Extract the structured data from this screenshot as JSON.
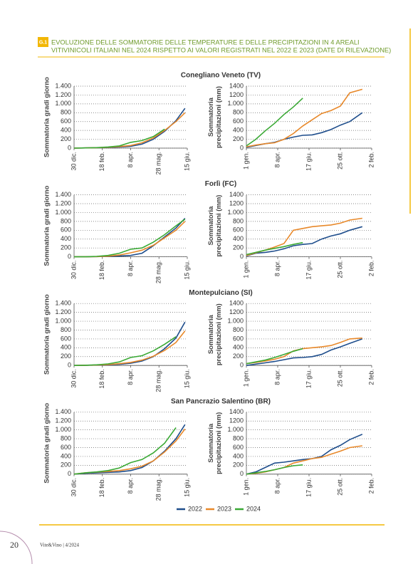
{
  "header": {
    "badge": "G.1",
    "title": [
      "EVOLUZIONE DELLE SOMMATORIE DELLE TEMPERATURE E DELLE PRECIPITAZIONI IN 4 AREALI",
      "VITIVINICOLI ITALIANI NEL 2024 RISPETTO AI VALORI REGISTRATI NEL 2022 E 2023 (DATE DI RILEVAZIONE)"
    ]
  },
  "chart_data": [
    {
      "type": "line",
      "title": "Conegliano Veneto (TV)",
      "ylabel": [
        "Sommatoria gradi giorno"
      ],
      "x": [
        0,
        20,
        40,
        60,
        80,
        100,
        120,
        140,
        160,
        180,
        196
      ],
      "xlim": [
        0,
        200
      ],
      "xticks": [
        {
          "value": 0,
          "label": "30 dic."
        },
        {
          "value": 50,
          "label": "18 feb."
        },
        {
          "value": 100,
          "label": "8 apr."
        },
        {
          "value": 150,
          "label": "28 mag."
        },
        {
          "value": 200,
          "label": "15 giu."
        }
      ],
      "ylim": [
        0,
        1400
      ],
      "yticks": [
        0,
        200,
        400,
        600,
        800,
        {
          "value": 1000,
          "label": "1.000"
        },
        {
          "value": 1200,
          "label": "1.200"
        },
        {
          "value": 1400,
          "label": "1.400"
        }
      ],
      "grid": true,
      "series": [
        {
          "name": "2022",
          "color": "#1f4e8c",
          "values": [
            0,
            5,
            10,
            15,
            25,
            40,
            90,
            200,
            380,
            620,
            900
          ]
        },
        {
          "name": "2023",
          "color": "#e8892b",
          "values": [
            0,
            5,
            10,
            20,
            35,
            60,
            120,
            230,
            400,
            600,
            800
          ]
        },
        {
          "name": "2024",
          "color": "#3aa935",
          "values": [
            0,
            5,
            12,
            25,
            50,
            130,
            170,
            260,
            430,
            null,
            null
          ]
        }
      ]
    },
    {
      "type": "line",
      "ylabel": [
        "Sommatoria",
        "precipitazioni (mm)"
      ],
      "x": [
        0,
        30,
        60,
        90,
        120,
        150,
        180,
        210,
        240,
        270,
        300,
        330,
        370
      ],
      "xlim": [
        0,
        400
      ],
      "xticks": [
        {
          "value": 0,
          "label": "1 gen."
        },
        {
          "value": 100,
          "label": "8 apr."
        },
        {
          "value": 200,
          "label": "17 giu."
        },
        {
          "value": 300,
          "label": "25 ott."
        },
        {
          "value": 400,
          "label": "2 feb."
        }
      ],
      "ylim": [
        0,
        1400
      ],
      "yticks": [
        0,
        200,
        400,
        600,
        800,
        {
          "value": 1000,
          "label": "1.000"
        },
        1200,
        1400
      ],
      "grid": true,
      "series": [
        {
          "color": "#1f4e8c",
          "values": [
            20,
            60,
            100,
            130,
            200,
            250,
            290,
            300,
            350,
            420,
            520,
            600,
            800
          ]
        },
        {
          "color": "#e8892b",
          "values": [
            30,
            70,
            100,
            120,
            200,
            330,
            500,
            640,
            780,
            850,
            950,
            1250,
            1330
          ]
        },
        {
          "color": "#3aa935",
          "values": [
            50,
            200,
            390,
            560,
            760,
            930,
            1130,
            null,
            null,
            null,
            null,
            null,
            null
          ]
        }
      ]
    },
    {
      "type": "line",
      "title": "Forlì (FC)",
      "ylabel": [
        "Sommatoria gradi giorno"
      ],
      "x": [
        0,
        20,
        40,
        60,
        80,
        100,
        120,
        140,
        160,
        180,
        196
      ],
      "xlim": [
        0,
        200
      ],
      "xticks": [
        {
          "value": 0,
          "label": "30 dic."
        },
        {
          "value": 50,
          "label": "18 feb."
        },
        {
          "value": 100,
          "label": "8 apr."
        },
        {
          "value": 150,
          "label": "28 mag."
        },
        {
          "value": 200,
          "label": "15 giu."
        }
      ],
      "ylim": [
        0,
        1400
      ],
      "yticks": [
        0,
        200,
        400,
        600,
        800,
        {
          "value": 1000,
          "label": "1.000"
        },
        {
          "value": 1200,
          "label": "1.200"
        },
        {
          "value": 1400,
          "label": "1.400"
        }
      ],
      "grid": true,
      "series": [
        {
          "color": "#1f4e8c",
          "values": [
            0,
            0,
            5,
            10,
            20,
            30,
            80,
            250,
            450,
            650,
            870
          ]
        },
        {
          "color": "#e8892b",
          "values": [
            0,
            0,
            5,
            15,
            40,
            90,
            150,
            260,
            430,
            600,
            800
          ]
        },
        {
          "color": "#3aa935",
          "values": [
            0,
            0,
            10,
            30,
            80,
            170,
            200,
            330,
            500,
            700,
            850
          ]
        }
      ]
    },
    {
      "type": "line",
      "ylabel": [
        "Sommatoria",
        "precipitazioni (mm)"
      ],
      "x": [
        0,
        30,
        60,
        90,
        120,
        150,
        180,
        210,
        240,
        270,
        300,
        330,
        370
      ],
      "xlim": [
        0,
        400
      ],
      "xticks": [
        {
          "value": 0,
          "label": "1 gen."
        },
        {
          "value": 100,
          "label": "8 apr."
        },
        {
          "value": 200,
          "label": "17 giu."
        },
        {
          "value": 300,
          "label": "25 ott."
        },
        {
          "value": 400,
          "label": "2 feb."
        }
      ],
      "ylim": [
        0,
        1400
      ],
      "yticks": [
        0,
        200,
        400,
        600,
        800,
        {
          "value": 1000,
          "label": "1.000"
        },
        1200,
        1400
      ],
      "grid": true,
      "series": [
        {
          "color": "#1f4e8c",
          "values": [
            20,
            80,
            100,
            130,
            180,
            250,
            280,
            300,
            400,
            470,
            520,
            600,
            680
          ]
        },
        {
          "color": "#e8892b",
          "values": [
            30,
            90,
            150,
            220,
            300,
            600,
            640,
            680,
            700,
            720,
            760,
            830,
            870
          ]
        },
        {
          "color": "#3aa935",
          "values": [
            50,
            100,
            150,
            190,
            230,
            280,
            320,
            null,
            null,
            null,
            null,
            null,
            null
          ]
        }
      ]
    },
    {
      "type": "line",
      "title": "Montepulciano (SI)",
      "ylabel": [
        "Sommatoria gradi giorno"
      ],
      "x": [
        0,
        20,
        40,
        60,
        80,
        100,
        120,
        140,
        160,
        180,
        196
      ],
      "xlim": [
        0,
        200
      ],
      "xticks": [
        {
          "value": 0,
          "label": "30 dic."
        },
        {
          "value": 50,
          "label": "18 feb."
        },
        {
          "value": 100,
          "label": "8 apr."
        },
        {
          "value": 150,
          "label": "28 mag."
        },
        {
          "value": 200,
          "label": "15 giu."
        }
      ],
      "ylim": [
        0,
        1400
      ],
      "yticks": [
        0,
        200,
        400,
        600,
        800,
        {
          "value": 1000,
          "label": "1.000"
        },
        {
          "value": 1200,
          "label": "1.200"
        },
        {
          "value": 1400,
          "label": "1.400"
        }
      ],
      "grid": true,
      "series": [
        {
          "color": "#1f4e8c",
          "values": [
            0,
            5,
            10,
            15,
            25,
            50,
            100,
            200,
            380,
            620,
            980
          ]
        },
        {
          "color": "#e8892b",
          "values": [
            0,
            5,
            10,
            20,
            40,
            70,
            120,
            210,
            340,
            520,
            780
          ]
        },
        {
          "color": "#3aa935",
          "values": [
            0,
            5,
            15,
            35,
            80,
            180,
            220,
            330,
            480,
            650,
            null
          ]
        }
      ]
    },
    {
      "type": "line",
      "ylabel": [
        "Sommatoria",
        "precipitazioni (mm)"
      ],
      "x": [
        0,
        30,
        60,
        90,
        120,
        150,
        180,
        210,
        240,
        270,
        300,
        330,
        370
      ],
      "xlim": [
        0,
        400
      ],
      "xticks": [
        {
          "value": 0,
          "label": "1 gen."
        },
        {
          "value": 100,
          "label": "8 apr."
        },
        {
          "value": 200,
          "label": "17 giu."
        },
        {
          "value": 300,
          "label": "25 ott."
        },
        {
          "value": 400,
          "label": "2 feb."
        }
      ],
      "ylim": [
        0,
        1400
      ],
      "yticks": [
        0,
        200,
        400,
        600,
        800,
        {
          "value": 1000,
          "label": "1.000"
        },
        1200,
        1400
      ],
      "grid": true,
      "series": [
        {
          "color": "#1f4e8c",
          "values": [
            0,
            30,
            60,
            90,
            130,
            170,
            180,
            200,
            250,
            350,
            420,
            500,
            600
          ]
        },
        {
          "color": "#e8892b",
          "values": [
            40,
            70,
            100,
            140,
            200,
            330,
            380,
            400,
            420,
            450,
            520,
            600,
            620
          ]
        },
        {
          "color": "#3aa935",
          "values": [
            40,
            80,
            120,
            180,
            250,
            320,
            380,
            null,
            null,
            null,
            null,
            null,
            null
          ]
        }
      ]
    },
    {
      "type": "line",
      "title": "San Pancrazio Salentino (BR)",
      "ylabel": [
        "Sommatoria gradi giorno"
      ],
      "x": [
        0,
        20,
        40,
        60,
        80,
        100,
        120,
        140,
        160,
        180,
        196
      ],
      "xlim": [
        0,
        200
      ],
      "xticks": [
        {
          "value": 0,
          "label": "30 dic."
        },
        {
          "value": 50,
          "label": "18 feb."
        },
        {
          "value": 100,
          "label": "8 apr."
        },
        {
          "value": 150,
          "label": "28 mag."
        },
        {
          "value": 200,
          "label": "15 giu."
        }
      ],
      "ylim": [
        0,
        1400
      ],
      "yticks": [
        0,
        200,
        400,
        600,
        800,
        {
          "value": 1000,
          "label": "1.000"
        },
        {
          "value": 1200,
          "label": "1.200"
        },
        {
          "value": 1400,
          "label": "1.400"
        }
      ],
      "grid": true,
      "series": [
        {
          "color": "#1f4e8c",
          "values": [
            0,
            20,
            30,
            40,
            50,
            80,
            150,
            300,
            520,
            800,
            1120
          ]
        },
        {
          "color": "#e8892b",
          "values": [
            0,
            30,
            45,
            60,
            80,
            120,
            180,
            300,
            500,
            750,
            1020
          ]
        },
        {
          "color": "#3aa935",
          "values": [
            0,
            30,
            50,
            80,
            140,
            260,
            330,
            480,
            700,
            1050,
            null
          ]
        }
      ]
    },
    {
      "type": "line",
      "ylabel": [
        "Sommatoria",
        "precipitazioni (mm)"
      ],
      "x": [
        0,
        30,
        60,
        90,
        120,
        150,
        180,
        210,
        240,
        270,
        300,
        330,
        370
      ],
      "xlim": [
        0,
        400
      ],
      "xticks": [
        {
          "value": 0,
          "label": "1 gen."
        },
        {
          "value": 100,
          "label": "8 apr."
        },
        {
          "value": 200,
          "label": "17 giu."
        },
        {
          "value": 300,
          "label": "25 ott."
        },
        {
          "value": 400,
          "label": "2 feb."
        }
      ],
      "ylim": [
        0,
        1400
      ],
      "yticks": [
        0,
        200,
        400,
        600,
        800,
        {
          "value": 1000,
          "label": "1.000"
        },
        1200,
        1400
      ],
      "grid": true,
      "series": [
        {
          "color": "#1f4e8c",
          "values": [
            0,
            50,
            150,
            250,
            270,
            300,
            330,
            350,
            400,
            550,
            650,
            780,
            900
          ]
        },
        {
          "color": "#e8892b",
          "values": [
            0,
            20,
            50,
            100,
            150,
            250,
            300,
            350,
            380,
            450,
            520,
            600,
            640
          ]
        },
        {
          "color": "#3aa935",
          "values": [
            0,
            30,
            60,
            100,
            150,
            190,
            210,
            null,
            null,
            null,
            null,
            null,
            null
          ]
        }
      ]
    }
  ],
  "footer": {
    "page": "20",
    "credit": "Vite&Vino | 4/2024"
  }
}
